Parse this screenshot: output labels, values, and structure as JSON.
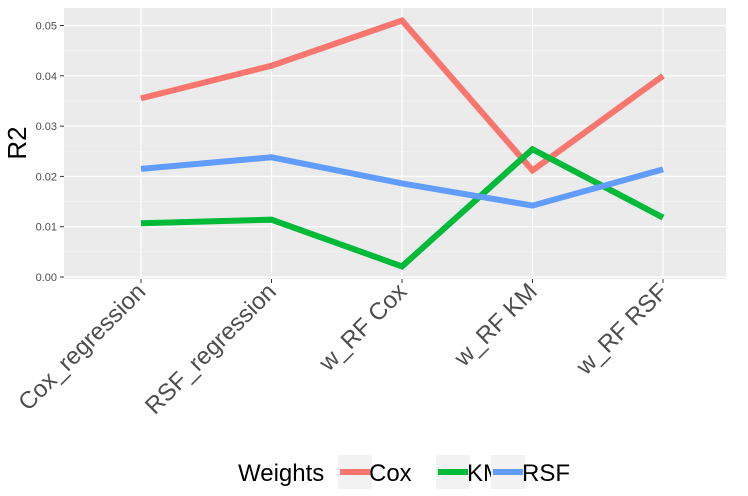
{
  "chart_data": {
    "type": "line",
    "categories": [
      "Cox_regression",
      "RSF_regression",
      "w_RF Cox",
      "w_RF KM",
      "w_RF RSF"
    ],
    "series": [
      {
        "name": "Cox",
        "color": "#F8766D",
        "values": [
          0.0355,
          0.042,
          0.051,
          0.0212,
          0.04
        ]
      },
      {
        "name": "KM",
        "color": "#00BA38",
        "values": [
          0.0107,
          0.0114,
          0.0021,
          0.0254,
          0.0118
        ]
      },
      {
        "name": "RSF",
        "color": "#619CFF",
        "values": [
          0.0215,
          0.0238,
          0.0186,
          0.0142,
          0.0214
        ]
      }
    ],
    "ylabel": "R2",
    "xlabel": "",
    "ylim": [
      0,
      0.053
    ],
    "yticks": [
      "0.00",
      "0.01",
      "0.02",
      "0.03",
      "0.04",
      "0.05"
    ],
    "legend": {
      "title": "Weights",
      "position": "bottom"
    },
    "grid": true,
    "panel_background": "#EBEBEB"
  }
}
